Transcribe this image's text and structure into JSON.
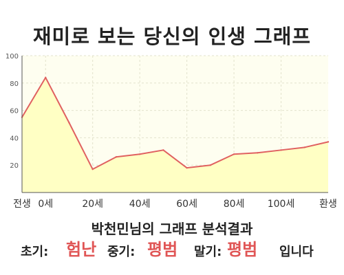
{
  "title": "재미로 보는 당신의 인생 그래프",
  "result": {
    "heading": "박천민님의 그래프 분석결과",
    "early_label": "초기:",
    "early_value": "험난",
    "middle_label": "중기:",
    "middle_value": "평범",
    "late_label": "말기:",
    "late_value": "평범",
    "ending": "입니다"
  },
  "colors": {
    "line": "#e06060",
    "fill": "#ffffc4",
    "plot_background": "#fefef0",
    "highlight_text": "#e05555"
  },
  "chart_data": {
    "type": "area",
    "x": [
      "전생",
      "0세",
      "",
      "20세",
      "",
      "40세",
      "",
      "60세",
      "",
      "80세",
      "",
      "100세",
      "",
      "환생"
    ],
    "y": [
      55,
      84,
      51,
      17,
      26,
      28,
      31,
      18,
      20,
      28,
      29,
      31,
      33,
      37
    ],
    "x_tick_labels": [
      "전생",
      "0세",
      "20세",
      "40세",
      "60세",
      "80세",
      "100세",
      "환생"
    ],
    "y_ticks": [
      20,
      40,
      60,
      80,
      100
    ],
    "ylim": [
      0,
      100
    ],
    "grid": true,
    "legend": "none"
  }
}
